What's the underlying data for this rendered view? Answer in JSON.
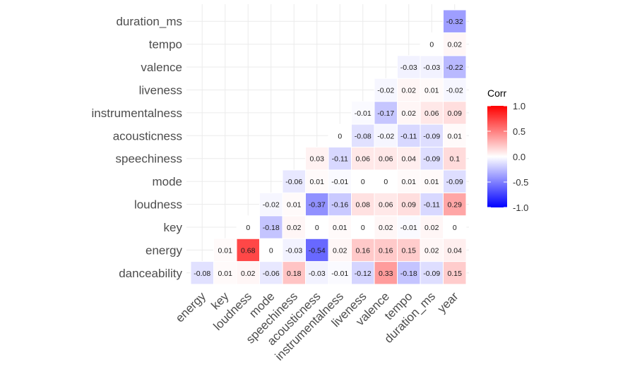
{
  "chart_data": {
    "type": "heatmap",
    "title": "",
    "x_variables": [
      "energy",
      "key",
      "loudness",
      "mode",
      "speechiness",
      "acousticness",
      "instrumentalness",
      "liveness",
      "valence",
      "tempo",
      "duration_ms",
      "year"
    ],
    "y_variables": [
      "danceability",
      "energy",
      "key",
      "loudness",
      "mode",
      "speechiness",
      "acousticness",
      "instrumentalness",
      "liveness",
      "valence",
      "tempo",
      "duration_ms"
    ],
    "values": [
      [
        "-0.08",
        "0.01",
        "0.02",
        "-0.06",
        "0.18",
        "-0.03",
        "-0.01",
        "-0.12",
        "0.33",
        "-0.18",
        "-0.09",
        "0.15"
      ],
      [
        null,
        "0.01",
        "0.68",
        "0",
        "-0.03",
        "-0.54",
        "0.02",
        "0.16",
        "0.16",
        "0.15",
        "0.02",
        "0.04"
      ],
      [
        null,
        null,
        "0",
        "-0.18",
        "0.02",
        "0",
        "0.01",
        "0",
        "0.02",
        "-0.01",
        "0.02",
        "0"
      ],
      [
        null,
        null,
        null,
        "-0.02",
        "0.01",
        "-0.37",
        "-0.16",
        "0.08",
        "0.06",
        "0.09",
        "-0.11",
        "0.29"
      ],
      [
        null,
        null,
        null,
        null,
        "-0.06",
        "0.01",
        "-0.01",
        "0",
        "0",
        "0.01",
        "0.01",
        "-0.09"
      ],
      [
        null,
        null,
        null,
        null,
        null,
        "0.03",
        "-0.11",
        "0.06",
        "0.06",
        "0.04",
        "-0.09",
        "0.1"
      ],
      [
        null,
        null,
        null,
        null,
        null,
        null,
        "0",
        "-0.08",
        "-0.02",
        "-0.11",
        "-0.09",
        "0.01"
      ],
      [
        null,
        null,
        null,
        null,
        null,
        null,
        null,
        "-0.01",
        "-0.17",
        "0.02",
        "0.06",
        "0.09"
      ],
      [
        null,
        null,
        null,
        null,
        null,
        null,
        null,
        null,
        "-0.02",
        "0.02",
        "0.01",
        "-0.02"
      ],
      [
        null,
        null,
        null,
        null,
        null,
        null,
        null,
        null,
        null,
        "-0.03",
        "-0.03",
        "-0.22"
      ],
      [
        null,
        null,
        null,
        null,
        null,
        null,
        null,
        null,
        null,
        null,
        "0",
        "0.02"
      ],
      [
        null,
        null,
        null,
        null,
        null,
        null,
        null,
        null,
        null,
        null,
        null,
        "-0.32"
      ]
    ],
    "legend": {
      "title": "Corr",
      "ticks": [
        "1.0",
        "0.5",
        "0.0",
        "-0.5",
        "-1.0"
      ],
      "range": [
        -1,
        1
      ],
      "placement": "right"
    },
    "colors": {
      "low": "#0000ff",
      "mid": "#ffffff",
      "high": "#ff0000",
      "grid": "#ebebeb"
    },
    "grid": true
  }
}
